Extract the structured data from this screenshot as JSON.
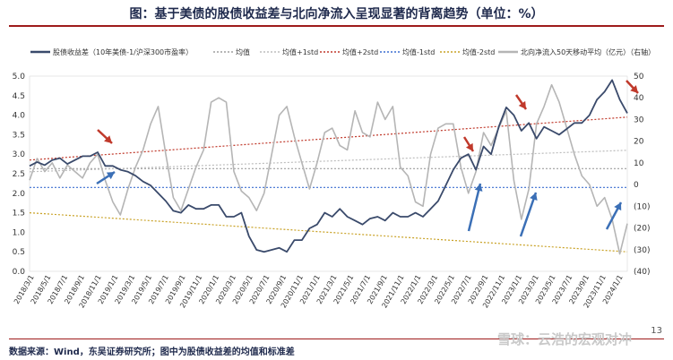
{
  "header": {
    "title": "图：基于美债的股债收益差与北向净流入呈现显著的背离趋势（单位：%）"
  },
  "footer": {
    "source": "数据来源：Wind，东吴证券研究所；图中为股债收益差的均值和标准差",
    "watermark": "雪球：云浩的宏观对冲",
    "page": "13"
  },
  "colors": {
    "spread": "#3a4a6b",
    "mean": "#9e9e9e",
    "plus1": "#bdbdbd",
    "plus2": "#c0392b",
    "minus1": "#3b6fd1",
    "minus2": "#c9a227",
    "northbound": "#b5b5b5",
    "arrow_red": "#c0392b",
    "arrow_blue": "#3b6fb6"
  },
  "chart_data": {
    "type": "line",
    "legend": [
      "股债收益差（10年美债-1/沪深300市盈率）",
      "均值",
      "均值+1std",
      "均值+2std",
      "均值-1std",
      "均值-2std",
      "北向净流入50天移动平均（亿元）（右轴）"
    ],
    "left_axis": {
      "min": 0.0,
      "max": 5.0,
      "ticks": [
        "0.0",
        "0.5",
        "1.0",
        "1.5",
        "2.0",
        "2.5",
        "3.0",
        "3.5",
        "4.0",
        "4.5",
        "5.0"
      ]
    },
    "right_axis": {
      "min": -40,
      "max": 50,
      "ticks": [
        "(40)",
        "(30)",
        "(20)",
        "(10)",
        "0",
        "10",
        "20",
        "30",
        "40",
        "50"
      ]
    },
    "x_ticks": [
      "2018/3/1",
      "2018/5/1",
      "2018/7/1",
      "2018/9/1",
      "2018/11/1",
      "2019/1/1",
      "2019/3/1",
      "2019/5/1",
      "2019/7/1",
      "2019/9/1",
      "2019/11/1",
      "2020/1/1",
      "2020/3/1",
      "2020/5/1",
      "2020/7/1",
      "2020/9/1",
      "2020/11/1",
      "2021/1/1",
      "2021/3/1",
      "2021/5/1",
      "2021/7/1",
      "2021/9/1",
      "2021/11/1",
      "2022/1/1",
      "2022/3/1",
      "2022/5/1",
      "2022/7/1",
      "2022/9/1",
      "2022/11/1",
      "2023/1/1",
      "2023/3/1",
      "2023/5/1",
      "2023/7/1",
      "2023/9/1",
      "2023/11/1",
      "2024/1/1"
    ],
    "series": [
      {
        "name": "股债收益差（10年美债-1/沪深300市盈率）",
        "axis": "left",
        "values": [
          2.7,
          2.8,
          2.72,
          2.85,
          2.9,
          2.75,
          2.85,
          2.95,
          2.95,
          3.05,
          2.7,
          2.7,
          2.6,
          2.55,
          2.45,
          2.3,
          2.2,
          2.0,
          1.8,
          1.55,
          1.5,
          1.7,
          1.6,
          1.6,
          1.7,
          1.7,
          1.4,
          1.4,
          1.5,
          0.9,
          0.55,
          0.5,
          0.55,
          0.6,
          0.5,
          0.8,
          0.8,
          1.1,
          1.2,
          1.5,
          1.4,
          1.6,
          1.4,
          1.3,
          1.2,
          1.35,
          1.4,
          1.3,
          1.5,
          1.4,
          1.4,
          1.5,
          1.4,
          1.6,
          1.8,
          2.2,
          2.6,
          2.9,
          3.0,
          2.6,
          3.2,
          3.0,
          3.7,
          4.2,
          4.0,
          3.6,
          3.8,
          3.4,
          3.7,
          3.6,
          3.5,
          3.65,
          3.8,
          3.8,
          4.0,
          4.4,
          4.6,
          4.9,
          4.4,
          4.05
        ]
      },
      {
        "name": "北向净流入50天移动平均（亿元）（右轴）",
        "axis": "right",
        "values": [
          2,
          12,
          6,
          10,
          3,
          9,
          6,
          3,
          10,
          14,
          2,
          -8,
          -14,
          -2,
          8,
          16,
          28,
          36,
          14,
          -6,
          -12,
          -2,
          8,
          16,
          38,
          40,
          38,
          6,
          -3,
          -6,
          -12,
          -4,
          14,
          32,
          36,
          22,
          10,
          -2,
          10,
          24,
          26,
          18,
          16,
          34,
          24,
          22,
          38,
          30,
          36,
          8,
          4,
          -8,
          -10,
          14,
          26,
          28,
          28,
          8,
          -4,
          6,
          24,
          18,
          26,
          34,
          2,
          -16,
          -2,
          28,
          36,
          46,
          38,
          26,
          14,
          4,
          0,
          -10,
          -6,
          -16,
          -32,
          -18
        ]
      },
      {
        "name": "均值",
        "axis": "left",
        "values": [
          2.63,
          2.63
        ]
      },
      {
        "name": "均值+1std",
        "axis": "left",
        "values": [
          2.55,
          3.1
        ]
      },
      {
        "name": "均值+2std",
        "axis": "left",
        "values": [
          2.85,
          3.95
        ]
      },
      {
        "name": "均值-1std",
        "axis": "left",
        "values": [
          2.15,
          2.15
        ]
      },
      {
        "name": "均值-2std",
        "axis": "left",
        "values": [
          1.5,
          0.5
        ]
      }
    ]
  }
}
